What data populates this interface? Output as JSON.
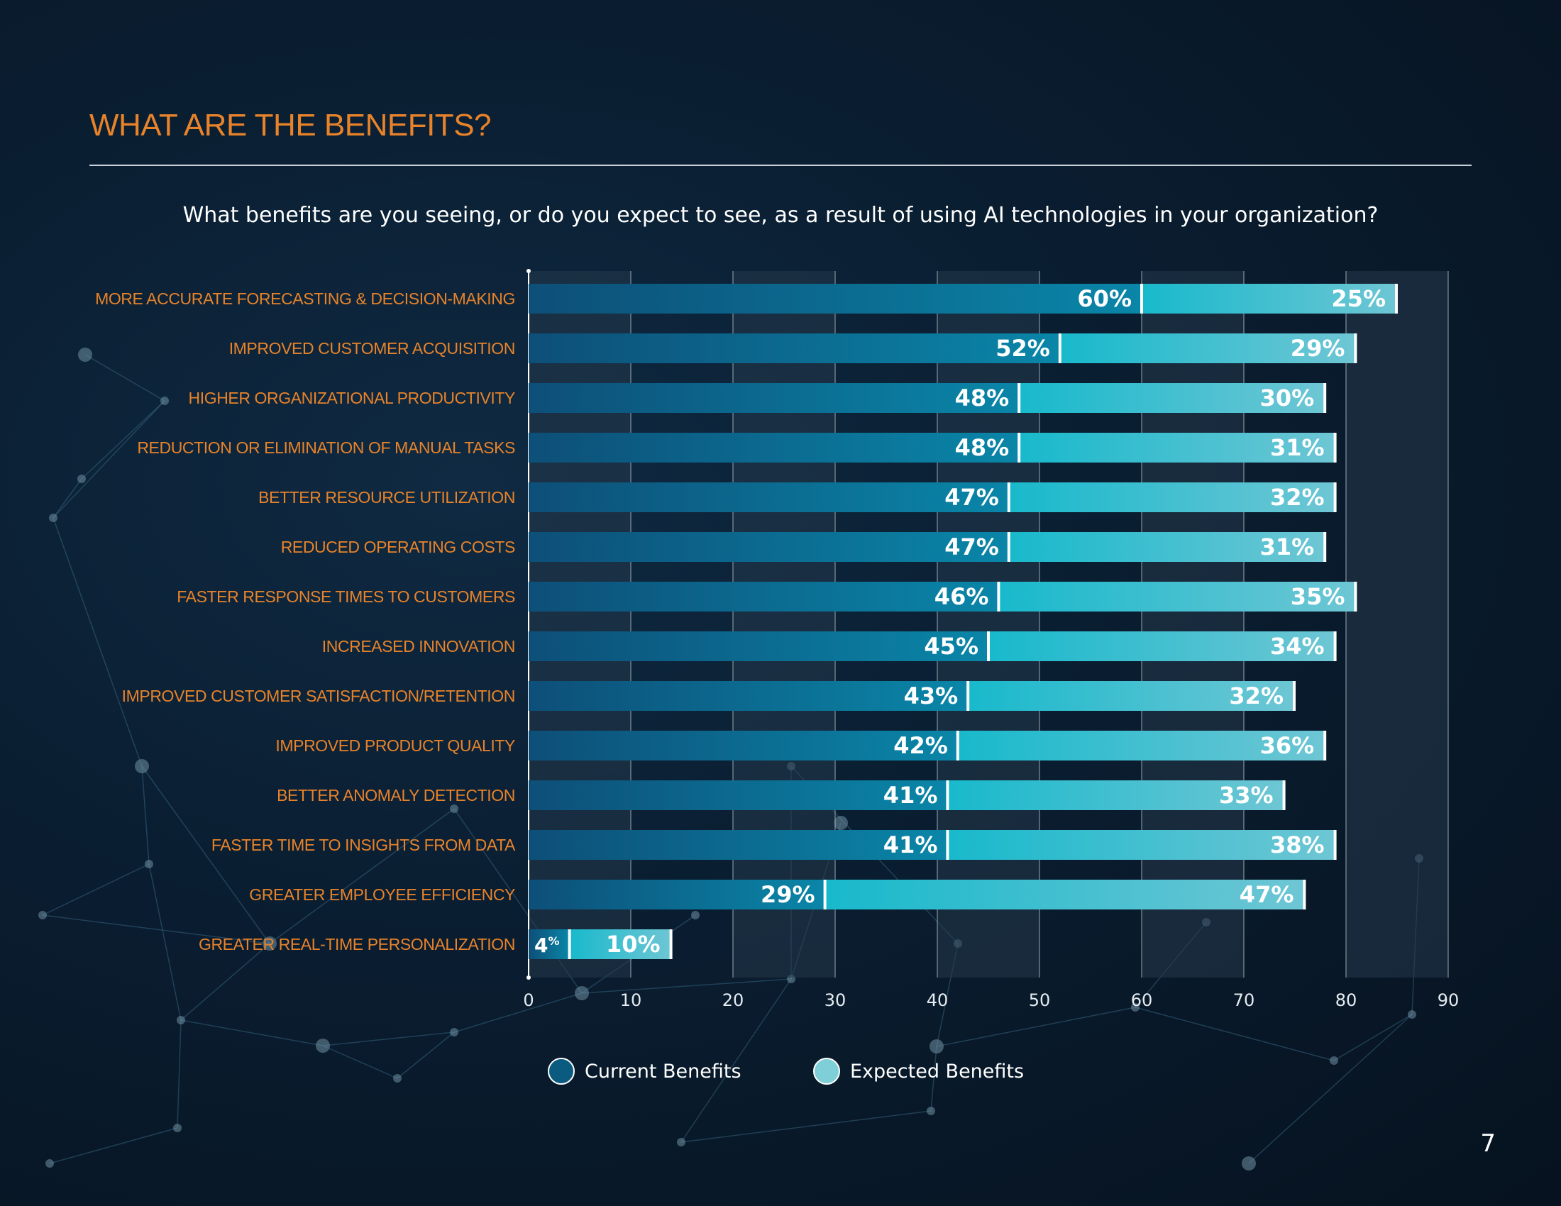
{
  "page": {
    "title": "WHAT ARE THE BENEFITS?",
    "question": "What benefits are you seeing, or do you expect to see, as a result of using AI technologies in your organization?",
    "page_number": "7"
  },
  "colors": {
    "title": "#e8832a",
    "category_label": "#e8832a",
    "current_dark": "#0d4f78",
    "current_light": "#0a86a8",
    "expected_dark": "#18b9cc",
    "expected_light": "#6ec6d4",
    "legend_current": "#0b5a80",
    "legend_expected": "#7fcfd8"
  },
  "legend": {
    "current_label": "Current Benefits",
    "expected_label": "Expected Benefits"
  },
  "chart_data": {
    "type": "bar",
    "orientation": "horizontal",
    "stacked": true,
    "title": "What benefits are you seeing, or do you expect to see, as a result of using AI technologies in your organization?",
    "xlabel": "",
    "ylabel": "",
    "xlim": [
      0,
      90
    ],
    "x_ticks": [
      0,
      10,
      20,
      30,
      40,
      50,
      60,
      70,
      80,
      90
    ],
    "categories": [
      "MORE ACCURATE FORECASTING & DECISION-MAKING",
      "IMPROVED CUSTOMER ACQUISITION",
      "HIGHER ORGANIZATIONAL PRODUCTIVITY",
      "REDUCTION OR ELIMINATION OF MANUAL TASKS",
      "BETTER RESOURCE UTILIZATION",
      "REDUCED OPERATING COSTS",
      "FASTER RESPONSE TIMES TO CUSTOMERS",
      "INCREASED INNOVATION",
      "IMPROVED CUSTOMER SATISFACTION/RETENTION",
      "IMPROVED PRODUCT QUALITY",
      "BETTER ANOMALY DETECTION",
      "FASTER TIME TO INSIGHTS FROM DATA",
      "GREATER EMPLOYEE EFFICIENCY",
      "GREATER REAL-TIME PERSONALIZATION"
    ],
    "series": [
      {
        "name": "Current Benefits",
        "values": [
          60,
          52,
          48,
          48,
          47,
          47,
          46,
          45,
          43,
          42,
          41,
          41,
          29,
          4
        ]
      },
      {
        "name": "Expected Benefits",
        "values": [
          25,
          29,
          30,
          31,
          32,
          31,
          35,
          34,
          32,
          36,
          33,
          38,
          47,
          10
        ]
      }
    ],
    "value_suffix": "%",
    "legend_position": "bottom-center"
  }
}
